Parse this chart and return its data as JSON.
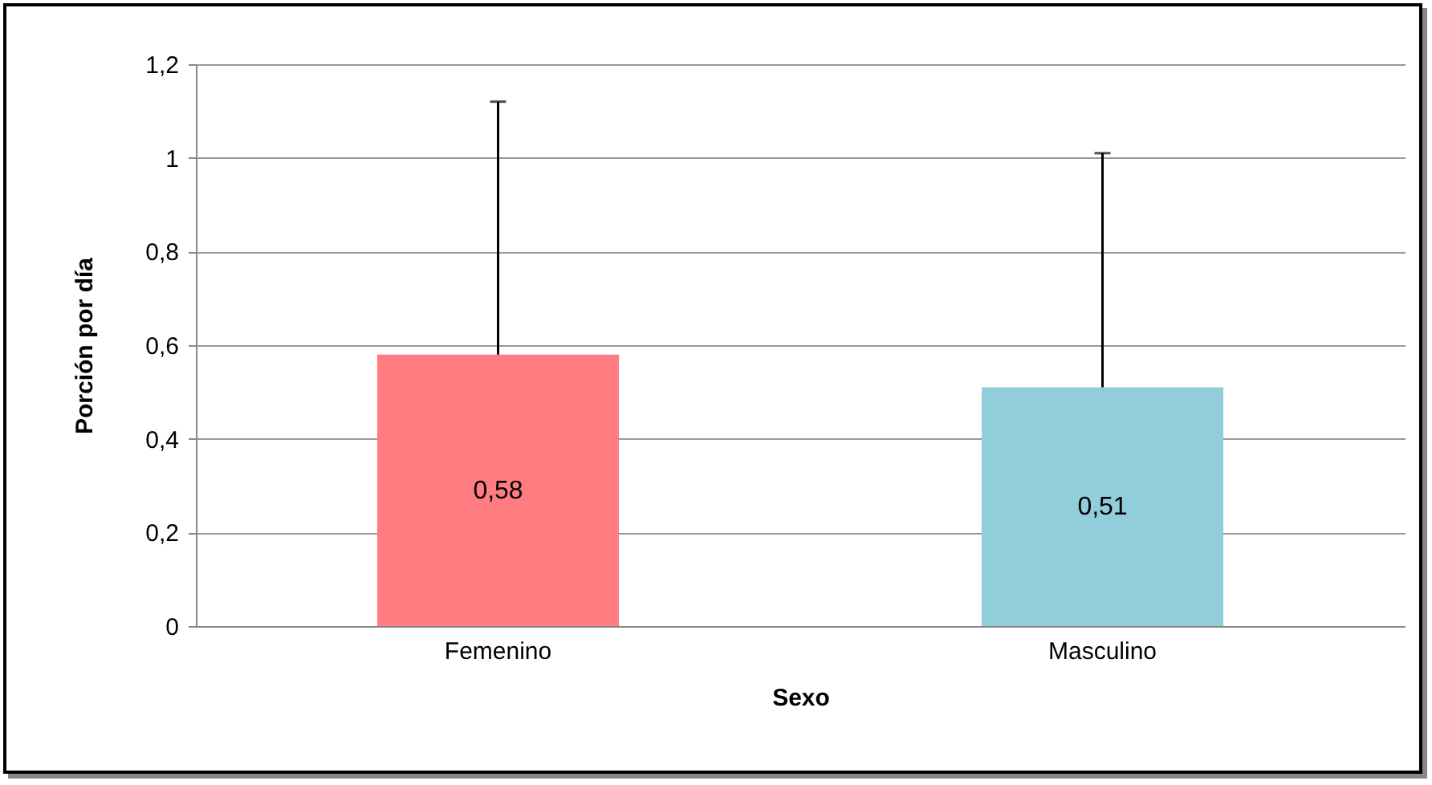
{
  "chart_data": {
    "type": "bar",
    "xlabel": "Sexo",
    "ylabel": "Porción por día",
    "categories": [
      "Femenino",
      "Masculino"
    ],
    "values": [
      0.58,
      0.51
    ],
    "colors": [
      "#ff7c80",
      "#92cddc"
    ],
    "value_labels": [
      "0,58",
      "0,51"
    ],
    "errors": [
      [
        0.58,
        1.12
      ],
      [
        0.51,
        1.01
      ]
    ],
    "ylim": [
      0,
      1.2
    ],
    "yticks": [
      {
        "value": 0,
        "label": "0"
      },
      {
        "value": 0.2,
        "label": "0,2"
      },
      {
        "value": 0.4,
        "label": "0,4"
      },
      {
        "value": 0.6,
        "label": "0,6"
      },
      {
        "value": 0.8,
        "label": "0,8"
      },
      {
        "value": 1,
        "label": "1"
      },
      {
        "value": 1.2,
        "label": "1,2"
      }
    ],
    "grid": "y"
  }
}
